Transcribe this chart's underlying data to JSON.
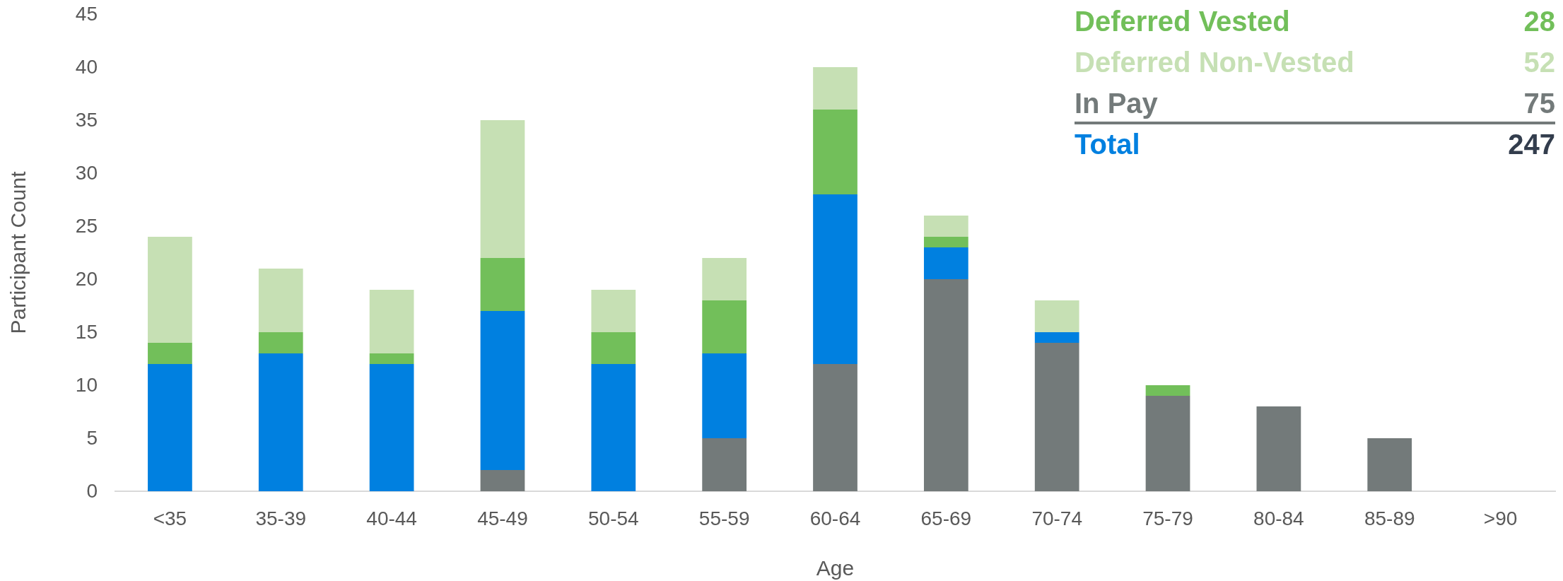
{
  "chart_data": {
    "type": "bar",
    "stacked": true,
    "xlabel": "Age",
    "ylabel": "Participant Count",
    "categories": [
      "<35",
      "35-39",
      "40-44",
      "45-49",
      "50-54",
      "55-59",
      "60-64",
      "65-69",
      "70-74",
      "75-79",
      "80-84",
      "85-89",
      ">90"
    ],
    "series": [
      {
        "name": "In Pay",
        "color": "#737a7a",
        "values": [
          0,
          0,
          0,
          2,
          0,
          5,
          12,
          20,
          14,
          9,
          8,
          5,
          0
        ]
      },
      {
        "color": "#0080e0",
        "values": [
          12,
          13,
          12,
          15,
          12,
          8,
          16,
          3,
          1,
          0,
          0,
          0,
          0
        ]
      },
      {
        "name": "Deferred Vested",
        "color": "#72bf5a",
        "values": [
          2,
          2,
          1,
          5,
          3,
          5,
          8,
          1,
          0,
          1,
          0,
          0,
          0
        ]
      },
      {
        "name": "Deferred Non-Vested",
        "color": "#c6e0b4",
        "values": [
          10,
          6,
          6,
          13,
          4,
          4,
          4,
          2,
          3,
          0,
          0,
          0,
          0
        ]
      }
    ],
    "ylim": [
      0,
      45
    ],
    "yticks": [
      0,
      5,
      10,
      15,
      20,
      25,
      30,
      35,
      40,
      45
    ],
    "grid": false,
    "legend": "top right",
    "annotations": [
      "28",
      "52",
      "75",
      "Total",
      "247"
    ]
  }
}
